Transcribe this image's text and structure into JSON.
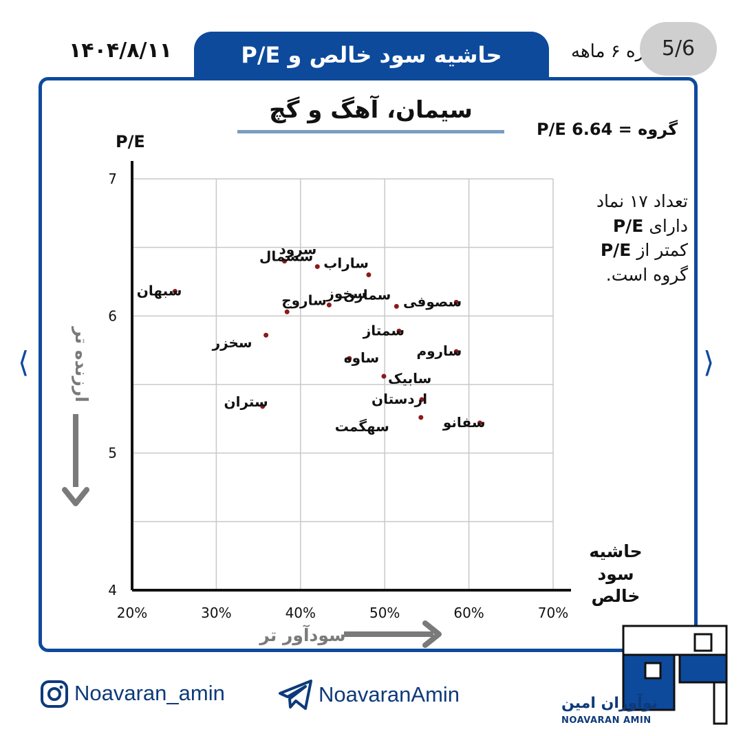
{
  "header": {
    "title": "حاشیه سود خالص و P/E",
    "date": "۱۴۰۴/۸/۱۱",
    "period": "دوره ۶ ماهه",
    "page_badge": "5/6"
  },
  "chart_heading": "سیمان، آهگ و گچ",
  "group_pe_label": "P/E گروه = 6.64",
  "note": {
    "line1": "تعداد ۱۷ نماد",
    "line2a": "دارای",
    "line2b": "P/E",
    "line3a": "کمتر از",
    "line3b": "P/E",
    "line4": "گروه است."
  },
  "arrows": {
    "y_text": "ارزنده تر",
    "x_text": "سودآور تر"
  },
  "footer": {
    "instagram": "Noavaran_amin",
    "telegram": "NoavaranAmin",
    "logo_fa": "نوآوران امین",
    "logo_en": "NOAVARAN AMIN"
  },
  "colors": {
    "brand": "#0d4a9c",
    "point": "#8b1a1a",
    "grid": "#c8c8c8",
    "arrow": "#7a7a7a"
  },
  "icons": [
    "instagram-icon",
    "telegram-icon",
    "chevron-left-icon",
    "chevron-right-icon"
  ],
  "chart_data": {
    "type": "scatter",
    "title": "سیمان، آهگ و گچ",
    "xlabel": "حاشیه سود خالص",
    "ylabel": "P/E",
    "xlim": [
      20,
      70
    ],
    "ylim": [
      4,
      7
    ],
    "x_ticks": [
      "20%",
      "30%",
      "40%",
      "50%",
      "60%",
      "70%"
    ],
    "y_ticks": [
      "4",
      "5",
      "6",
      "7"
    ],
    "grid": true,
    "points": [
      {
        "label": "سرود",
        "x": 38.1,
        "y": 6.4
      },
      {
        "label": "سشمال",
        "x": 42.0,
        "y": 6.36
      },
      {
        "label": "ساراب",
        "x": 48.1,
        "y": 6.3
      },
      {
        "label": "سبهان",
        "x": 25.1,
        "y": 6.18
      },
      {
        "label": "سخوز",
        "x": 43.4,
        "y": 6.08
      },
      {
        "label": "سمازن",
        "x": 51.4,
        "y": 6.07
      },
      {
        "label": "سصوفی",
        "x": 58.5,
        "y": 6.1
      },
      {
        "label": "ساروج",
        "x": 38.4,
        "y": 6.03
      },
      {
        "label": "سمتاز",
        "x": 51.7,
        "y": 5.89
      },
      {
        "label": "سخزر",
        "x": 35.9,
        "y": 5.86
      },
      {
        "label": "ساروم",
        "x": 58.5,
        "y": 5.74
      },
      {
        "label": "ساوه",
        "x": 45.8,
        "y": 5.69
      },
      {
        "label": "سابیک",
        "x": 49.9,
        "y": 5.56
      },
      {
        "label": "اردستان",
        "x": 54.4,
        "y": 5.39
      },
      {
        "label": "ستران",
        "x": 35.5,
        "y": 5.34
      },
      {
        "label": "سهگمت",
        "x": 54.3,
        "y": 5.26
      },
      {
        "label": "سفانو",
        "x": 61.3,
        "y": 5.22
      }
    ]
  }
}
